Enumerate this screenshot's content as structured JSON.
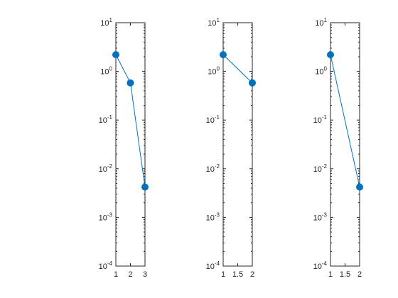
{
  "chart_data": [
    {
      "type": "line",
      "y_scale": "log",
      "ylim": [
        0.0001,
        10
      ],
      "xlim": [
        1,
        3
      ],
      "grid": false,
      "x_ticks": [
        "1",
        "2",
        "3"
      ],
      "y_ticks": [
        {
          "value": 10,
          "base": "10",
          "exp": "1"
        },
        {
          "value": 1,
          "base": "10",
          "exp": "0"
        },
        {
          "value": 0.1,
          "base": "10",
          "exp": "-1"
        },
        {
          "value": 0.01,
          "base": "10",
          "exp": "-2"
        },
        {
          "value": 0.001,
          "base": "10",
          "exp": "-3"
        },
        {
          "value": 0.0001,
          "base": "10",
          "exp": "-4"
        }
      ],
      "series": [
        {
          "x": [
            1,
            2,
            3
          ],
          "y": [
            2.2,
            0.58,
            0.0042
          ],
          "color": "#0072bd",
          "marker": "circle"
        }
      ]
    },
    {
      "type": "line",
      "y_scale": "log",
      "ylim": [
        0.0001,
        10
      ],
      "xlim": [
        1,
        2
      ],
      "grid": false,
      "x_ticks": [
        "1",
        "1.5",
        "2"
      ],
      "y_ticks": [
        {
          "value": 10,
          "base": "10",
          "exp": "1"
        },
        {
          "value": 1,
          "base": "10",
          "exp": "0"
        },
        {
          "value": 0.1,
          "base": "10",
          "exp": "-1"
        },
        {
          "value": 0.01,
          "base": "10",
          "exp": "-2"
        },
        {
          "value": 0.001,
          "base": "10",
          "exp": "-3"
        },
        {
          "value": 0.0001,
          "base": "10",
          "exp": "-4"
        }
      ],
      "series": [
        {
          "x": [
            1,
            2
          ],
          "y": [
            2.2,
            0.58
          ],
          "color": "#0072bd",
          "marker": "circle"
        }
      ]
    },
    {
      "type": "line",
      "y_scale": "log",
      "ylim": [
        0.0001,
        10
      ],
      "xlim": [
        1,
        2
      ],
      "grid": false,
      "x_ticks": [
        "1",
        "1.5",
        "2"
      ],
      "y_ticks": [
        {
          "value": 10,
          "base": "10",
          "exp": "1"
        },
        {
          "value": 1,
          "base": "10",
          "exp": "0"
        },
        {
          "value": 0.1,
          "base": "10",
          "exp": "-1"
        },
        {
          "value": 0.01,
          "base": "10",
          "exp": "-2"
        },
        {
          "value": 0.001,
          "base": "10",
          "exp": "-3"
        },
        {
          "value": 0.0001,
          "base": "10",
          "exp": "-4"
        }
      ],
      "series": [
        {
          "x": [
            1,
            2
          ],
          "y": [
            2.2,
            0.0042
          ],
          "color": "#0072bd",
          "marker": "circle"
        }
      ]
    }
  ]
}
